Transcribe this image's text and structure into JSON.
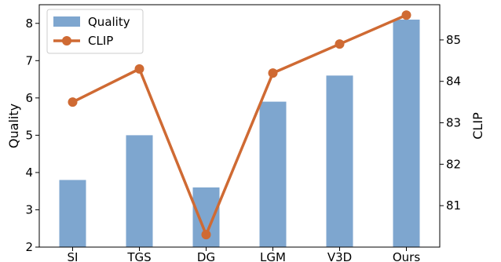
{
  "chart_data": {
    "type": "bar+line",
    "categories": [
      "SI",
      "TGS",
      "DG",
      "LGM",
      "V3D",
      "Ours"
    ],
    "series": [
      {
        "name": "Quality",
        "type": "bar",
        "axis": "left",
        "color": "#7ea6cf",
        "values": [
          3.8,
          5.0,
          3.6,
          5.9,
          6.6,
          8.1
        ]
      },
      {
        "name": "CLIP",
        "type": "line",
        "axis": "right",
        "color": "#cf6a33",
        "values": [
          83.5,
          84.3,
          80.3,
          84.2,
          84.9,
          85.6
        ]
      }
    ],
    "ylabel_left": "Quality",
    "ylabel_right": "CLIP",
    "ylim_left": [
      2,
      8.5
    ],
    "ylim_right": [
      80.0,
      85.85
    ],
    "yticks_left": [
      "2",
      "3",
      "4",
      "5",
      "6",
      "7",
      "8"
    ],
    "yticks_right": [
      "81",
      "82",
      "83",
      "84",
      "85"
    ],
    "grid": false,
    "legend_position": "top-left"
  }
}
